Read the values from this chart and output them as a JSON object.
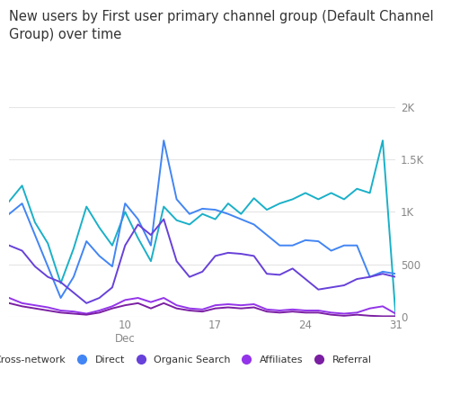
{
  "title": "New users by First user primary channel group (Default Channel\nGroup) over time",
  "title_fontsize": 10.5,
  "background_color": "#ffffff",
  "ylim": [
    0,
    2000
  ],
  "y_ticks": [
    0,
    500,
    1000,
    1500,
    2000
  ],
  "y_tick_labels": [
    "0",
    "500",
    "1K",
    "1.5K",
    "2K"
  ],
  "legend": [
    "Cross-network",
    "Direct",
    "Organic Search",
    "Affiliates",
    "Referral"
  ],
  "legend_colors": [
    "#1ab0c8",
    "#4285f4",
    "#6741d9",
    "#9334ea",
    "#7b1fa2"
  ],
  "series": {
    "Cross-network": {
      "color": "#1ab0c8",
      "x": [
        1,
        2,
        3,
        4,
        5,
        6,
        7,
        8,
        9,
        10,
        11,
        12,
        13,
        14,
        15,
        16,
        17,
        18,
        19,
        20,
        21,
        22,
        23,
        24,
        25,
        26,
        27,
        28,
        29,
        30,
        31
      ],
      "y": [
        1100,
        1250,
        900,
        700,
        320,
        650,
        1050,
        850,
        680,
        1000,
        750,
        530,
        1050,
        920,
        880,
        980,
        930,
        1080,
        980,
        1130,
        1020,
        1080,
        1120,
        1180,
        1120,
        1180,
        1120,
        1220,
        1180,
        1680,
        20
      ]
    },
    "Direct": {
      "color": "#4285f4",
      "x": [
        1,
        2,
        3,
        4,
        5,
        6,
        7,
        8,
        9,
        10,
        11,
        12,
        13,
        14,
        15,
        16,
        17,
        18,
        19,
        20,
        21,
        22,
        23,
        24,
        25,
        26,
        27,
        28,
        29,
        30,
        31
      ],
      "y": [
        980,
        1080,
        780,
        480,
        180,
        380,
        720,
        580,
        480,
        1080,
        930,
        680,
        1680,
        1120,
        980,
        1030,
        1020,
        980,
        930,
        880,
        780,
        680,
        680,
        730,
        720,
        630,
        680,
        680,
        380,
        430,
        410
      ]
    },
    "Organic Search": {
      "color": "#6741d9",
      "x": [
        1,
        2,
        3,
        4,
        5,
        6,
        7,
        8,
        9,
        10,
        11,
        12,
        13,
        14,
        15,
        16,
        17,
        18,
        19,
        20,
        21,
        22,
        23,
        24,
        25,
        26,
        27,
        28,
        29,
        30,
        31
      ],
      "y": [
        680,
        630,
        480,
        380,
        330,
        230,
        130,
        180,
        280,
        680,
        880,
        780,
        930,
        530,
        380,
        430,
        580,
        610,
        600,
        580,
        410,
        400,
        460,
        360,
        260,
        280,
        300,
        360,
        380,
        410,
        380
      ]
    },
    "Affiliates": {
      "color": "#9334ea",
      "x": [
        1,
        2,
        3,
        4,
        5,
        6,
        7,
        8,
        9,
        10,
        11,
        12,
        13,
        14,
        15,
        16,
        17,
        18,
        19,
        20,
        21,
        22,
        23,
        24,
        25,
        26,
        27,
        28,
        29,
        30,
        31
      ],
      "y": [
        180,
        130,
        110,
        90,
        60,
        50,
        30,
        60,
        100,
        160,
        180,
        140,
        180,
        110,
        80,
        70,
        110,
        120,
        110,
        120,
        70,
        60,
        70,
        60,
        60,
        40,
        30,
        40,
        80,
        100,
        30
      ]
    },
    "Referral": {
      "color": "#7b1fa2",
      "x": [
        1,
        2,
        3,
        4,
        5,
        6,
        7,
        8,
        9,
        10,
        11,
        12,
        13,
        14,
        15,
        16,
        17,
        18,
        19,
        20,
        21,
        22,
        23,
        24,
        25,
        26,
        27,
        28,
        29,
        30,
        31
      ],
      "y": [
        130,
        100,
        80,
        60,
        40,
        30,
        20,
        40,
        80,
        110,
        130,
        80,
        130,
        80,
        60,
        50,
        80,
        90,
        80,
        90,
        50,
        40,
        50,
        40,
        40,
        20,
        10,
        20,
        10,
        5,
        5
      ]
    }
  }
}
